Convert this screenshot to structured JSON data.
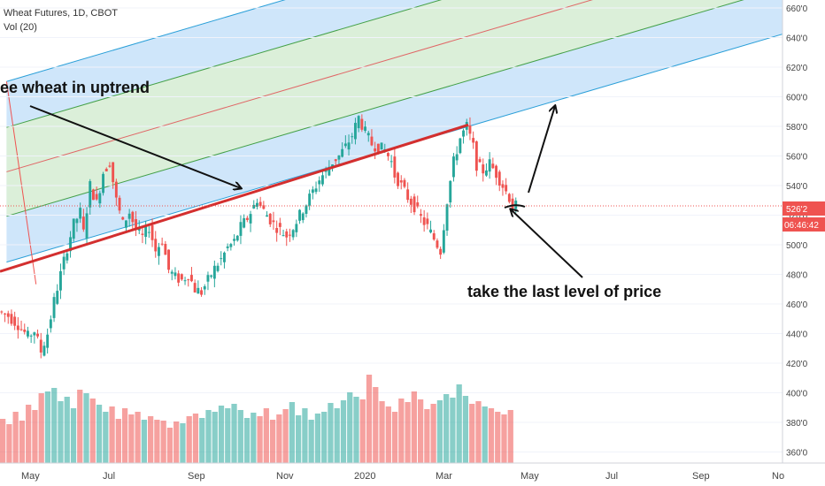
{
  "header": {
    "symbol": "Wheat Futures, 1D, CBOT",
    "volume_label": "Vol (20)"
  },
  "annotations": {
    "uptrend": "ee wheat in uptrend",
    "last_level": "take the last level of price"
  },
  "price_badge": {
    "price": "526'2",
    "countdown": "06:46:42"
  },
  "colors": {
    "up": "#26a69a",
    "down": "#ef5350",
    "outer_band": "#cfe6fa",
    "inner_band": "#dbefd9",
    "median_line": "#e06666",
    "inner_line": "#43a047",
    "outer_line": "#2a9fd8",
    "trend_line": "#d32f2f"
  },
  "chart_data": {
    "type": "candlestick",
    "y_axis": {
      "ticks": [
        "660'0",
        "640'0",
        "620'0",
        "600'0",
        "580'0",
        "560'0",
        "540'0",
        "520'0",
        "500'0",
        "480'0",
        "460'0",
        "440'0",
        "420'0",
        "400'0",
        "380'0",
        "360'0"
      ],
      "range": [
        355,
        664
      ]
    },
    "x_axis": {
      "labels": [
        "May",
        "Jul",
        "Sep",
        "Nov",
        "2020",
        "Mar",
        "May",
        "Jul",
        "Sep",
        "No"
      ]
    },
    "last_price": 526.25,
    "price_path": [
      [
        0,
        455
      ],
      [
        3,
        452
      ],
      [
        6,
        446
      ],
      [
        9,
        438
      ],
      [
        11,
        442
      ],
      [
        13,
        428
      ],
      [
        15,
        440
      ],
      [
        17,
        462
      ],
      [
        19,
        480
      ],
      [
        21,
        498
      ],
      [
        23,
        514
      ],
      [
        25,
        522
      ],
      [
        26,
        508
      ],
      [
        28,
        540
      ],
      [
        30,
        528
      ],
      [
        32,
        549
      ],
      [
        34,
        556
      ],
      [
        36,
        530
      ],
      [
        38,
        514
      ],
      [
        40,
        522
      ],
      [
        42,
        510
      ],
      [
        44,
        505
      ],
      [
        46,
        512
      ],
      [
        48,
        496
      ],
      [
        50,
        503
      ],
      [
        52,
        483
      ],
      [
        54,
        478
      ],
      [
        56,
        476
      ],
      [
        58,
        480
      ],
      [
        60,
        470
      ],
      [
        62,
        468
      ],
      [
        64,
        476
      ],
      [
        66,
        484
      ],
      [
        68,
        490
      ],
      [
        70,
        498
      ],
      [
        72,
        502
      ],
      [
        74,
        512
      ],
      [
        76,
        518
      ],
      [
        78,
        526
      ],
      [
        79,
        531
      ],
      [
        80,
        526
      ],
      [
        82,
        520
      ],
      [
        84,
        514
      ],
      [
        86,
        510
      ],
      [
        88,
        506
      ],
      [
        90,
        512
      ],
      [
        92,
        520
      ],
      [
        94,
        528
      ],
      [
        96,
        536
      ],
      [
        98,
        544
      ],
      [
        100,
        550
      ],
      [
        102,
        556
      ],
      [
        104,
        560
      ],
      [
        106,
        566
      ],
      [
        108,
        574
      ],
      [
        110,
        586
      ],
      [
        112,
        576
      ],
      [
        114,
        568
      ],
      [
        116,
        566
      ],
      [
        118,
        564
      ],
      [
        120,
        556
      ],
      [
        121,
        547
      ],
      [
        123,
        540
      ],
      [
        125,
        532
      ],
      [
        127,
        526
      ],
      [
        129,
        518
      ],
      [
        131,
        512
      ],
      [
        133,
        504
      ],
      [
        135,
        496
      ],
      [
        137,
        530
      ],
      [
        139,
        556
      ],
      [
        141,
        572
      ],
      [
        143,
        580
      ],
      [
        145,
        566
      ],
      [
        146,
        554
      ],
      [
        148,
        550
      ],
      [
        150,
        555
      ],
      [
        152,
        548
      ],
      [
        154,
        540
      ],
      [
        156,
        532
      ],
      [
        157,
        526.25
      ]
    ],
    "volume": {
      "label": "Vol (20)",
      "heights": [
        50,
        44,
        58,
        48,
        66,
        60,
        79,
        81,
        85,
        70,
        75,
        62,
        83,
        79,
        73,
        66,
        58,
        64,
        50,
        62,
        55,
        58,
        49,
        53,
        49,
        48,
        40,
        47,
        45,
        53,
        56,
        51,
        60,
        58,
        65,
        62,
        67,
        60,
        51,
        57,
        53,
        62,
        49,
        55,
        61,
        69,
        54,
        62,
        49,
        56,
        58,
        68,
        62,
        71,
        80,
        75,
        72,
        100,
        86,
        70,
        64,
        58,
        73,
        69,
        81,
        72,
        61,
        67,
        71,
        78,
        74,
        89,
        76,
        67,
        70,
        64,
        62,
        58,
        55,
        60
      ]
    },
    "pitchfork": {
      "anchor": [
        0,
        548
      ],
      "slope_per_bar": 0.65,
      "median_offset": 0,
      "inner_offsets": [
        -30,
        30
      ],
      "outer_offsets": [
        -61,
        61
      ]
    },
    "trend_line": {
      "from": [
        0,
        482
      ],
      "to": [
        143,
        581
      ]
    },
    "crosshair_level": 526.25
  }
}
